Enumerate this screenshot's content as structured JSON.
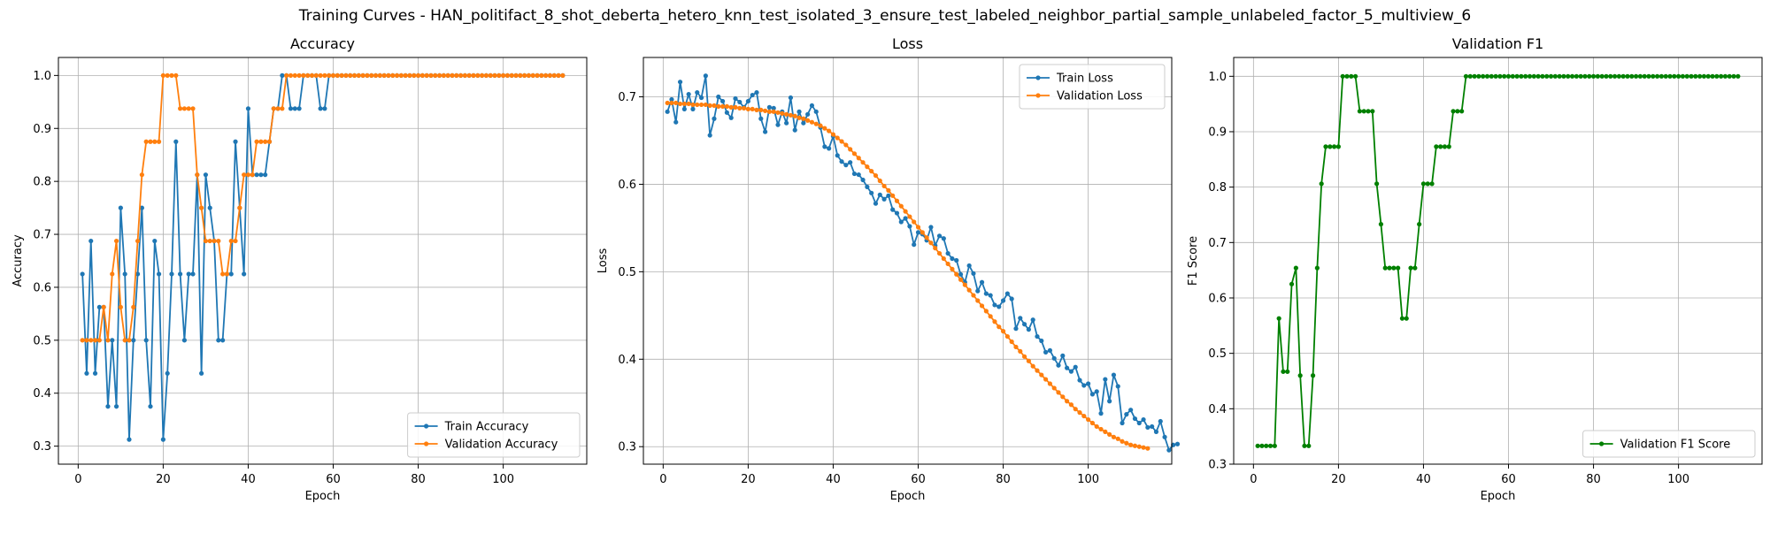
{
  "figure": {
    "suptitle": "Training Curves - HAN_politifact_8_shot_deberta_hetero_knn_test_isolated_3_ensure_test_labeled_neighbor_partial_sample_unlabeled_factor_5_multiview_6"
  },
  "colors": {
    "train": "#1f77b4",
    "validation": "#ff7f0e",
    "f1": "#008000",
    "grid": "#b0b0b0"
  },
  "chart_data": [
    {
      "type": "line",
      "title": "Accuracy",
      "xlabel": "Epoch",
      "ylabel": "Accuracy",
      "xlim": [
        -4.65,
        119.65
      ],
      "ylim": [
        0.266,
        1.034
      ],
      "xticks": [
        0,
        20,
        40,
        60,
        80,
        100
      ],
      "yticks": [
        0.3,
        0.4,
        0.5,
        0.6,
        0.7,
        0.8,
        0.9,
        1.0
      ],
      "grid": true,
      "legend": "lower right",
      "series": [
        {
          "name": "Train Accuracy",
          "color": "#1f77b4",
          "x_start": 1,
          "values": [
            0.625,
            0.4375,
            0.6875,
            0.4375,
            0.5625,
            0.5625,
            0.375,
            0.5,
            0.375,
            0.75,
            0.625,
            0.3125,
            0.5,
            0.625,
            0.75,
            0.5,
            0.375,
            0.6875,
            0.625,
            0.3125,
            0.4375,
            0.625,
            0.875,
            0.625,
            0.5,
            0.625,
            0.625,
            0.8125,
            0.4375,
            0.8125,
            0.75,
            0.6875,
            0.5,
            0.5,
            0.625,
            0.625,
            0.875,
            0.75,
            0.625,
            0.9375,
            0.8125,
            0.8125,
            0.8125,
            0.8125,
            0.875,
            0.9375,
            0.9375,
            1.0,
            1.0,
            0.9375,
            0.9375,
            0.9375,
            1.0,
            1.0,
            1.0,
            1.0,
            0.9375,
            0.9375,
            1.0,
            1.0,
            1.0,
            1.0,
            1.0,
            1.0,
            1.0,
            1.0,
            1.0,
            1.0,
            1.0,
            1.0,
            1.0,
            1.0,
            1.0,
            1.0,
            1.0,
            1.0,
            1.0,
            1.0,
            1.0,
            1.0,
            1.0,
            1.0,
            1.0,
            1.0,
            1.0,
            1.0,
            1.0,
            1.0,
            1.0,
            1.0,
            1.0,
            1.0,
            1.0,
            1.0,
            1.0,
            1.0,
            1.0,
            1.0,
            1.0,
            1.0,
            1.0,
            1.0,
            1.0,
            1.0,
            1.0,
            1.0,
            1.0,
            1.0,
            1.0,
            1.0,
            1.0,
            1.0,
            1.0,
            1.0
          ]
        },
        {
          "name": "Validation Accuracy",
          "color": "#ff7f0e",
          "x_start": 1,
          "values": [
            0.5,
            0.5,
            0.5,
            0.5,
            0.5,
            0.5625,
            0.5,
            0.625,
            0.6875,
            0.5625,
            0.5,
            0.5,
            0.5625,
            0.6875,
            0.8125,
            0.875,
            0.875,
            0.875,
            0.875,
            1.0,
            1.0,
            1.0,
            1.0,
            0.9375,
            0.9375,
            0.9375,
            0.9375,
            0.8125,
            0.75,
            0.6875,
            0.6875,
            0.6875,
            0.6875,
            0.625,
            0.625,
            0.6875,
            0.6875,
            0.75,
            0.8125,
            0.8125,
            0.8125,
            0.875,
            0.875,
            0.875,
            0.875,
            0.9375,
            0.9375,
            0.9375,
            1.0,
            1.0,
            1.0,
            1.0,
            1.0,
            1.0,
            1.0,
            1.0,
            1.0,
            1.0,
            1.0,
            1.0,
            1.0,
            1.0,
            1.0,
            1.0,
            1.0,
            1.0,
            1.0,
            1.0,
            1.0,
            1.0,
            1.0,
            1.0,
            1.0,
            1.0,
            1.0,
            1.0,
            1.0,
            1.0,
            1.0,
            1.0,
            1.0,
            1.0,
            1.0,
            1.0,
            1.0,
            1.0,
            1.0,
            1.0,
            1.0,
            1.0,
            1.0,
            1.0,
            1.0,
            1.0,
            1.0,
            1.0,
            1.0,
            1.0,
            1.0,
            1.0,
            1.0,
            1.0,
            1.0,
            1.0,
            1.0,
            1.0,
            1.0,
            1.0,
            1.0,
            1.0,
            1.0,
            1.0,
            1.0,
            1.0
          ]
        }
      ]
    },
    {
      "type": "line",
      "title": "Loss",
      "xlabel": "Epoch",
      "ylabel": "Loss",
      "xlim": [
        -4.65,
        119.65
      ],
      "ylim": [
        0.28,
        0.745
      ],
      "xticks": [
        0,
        20,
        40,
        60,
        80,
        100
      ],
      "yticks": [
        0.3,
        0.4,
        0.5,
        0.6,
        0.7
      ],
      "grid": true,
      "legend": "upper right",
      "series": [
        {
          "name": "Train Loss",
          "color": "#1f77b4",
          "x_start": 1,
          "values": [
            0.683,
            0.697,
            0.671,
            0.717,
            0.686,
            0.703,
            0.686,
            0.705,
            0.699,
            0.724,
            0.656,
            0.675,
            0.7,
            0.695,
            0.682,
            0.676,
            0.698,
            0.694,
            0.688,
            0.695,
            0.702,
            0.705,
            0.675,
            0.66,
            0.688,
            0.687,
            0.668,
            0.683,
            0.67,
            0.699,
            0.662,
            0.683,
            0.67,
            0.68,
            0.69,
            0.683,
            0.665,
            0.643,
            0.641,
            0.655,
            0.633,
            0.626,
            0.622,
            0.625,
            0.612,
            0.611,
            0.605,
            0.597,
            0.59,
            0.578,
            0.588,
            0.583,
            0.587,
            0.571,
            0.567,
            0.557,
            0.561,
            0.552,
            0.531,
            0.545,
            0.543,
            0.536,
            0.551,
            0.53,
            0.541,
            0.538,
            0.521,
            0.515,
            0.513,
            0.497,
            0.488,
            0.507,
            0.498,
            0.478,
            0.488,
            0.475,
            0.473,
            0.462,
            0.46,
            0.467,
            0.475,
            0.469,
            0.435,
            0.447,
            0.44,
            0.434,
            0.445,
            0.426,
            0.421,
            0.408,
            0.41,
            0.401,
            0.393,
            0.404,
            0.39,
            0.386,
            0.391,
            0.376,
            0.37,
            0.372,
            0.36,
            0.363,
            0.338,
            0.377,
            0.352,
            0.382,
            0.369,
            0.327,
            0.337,
            0.342,
            0.332,
            0.327,
            0.331,
            0.322,
            0.323,
            0.317,
            0.329,
            0.311,
            0.296,
            0.302,
            0.303
          ]
        },
        {
          "name": "Validation Loss",
          "color": "#ff7f0e",
          "x_start": 1,
          "values": [
            0.693,
            0.693,
            0.693,
            0.692,
            0.692,
            0.692,
            0.691,
            0.691,
            0.691,
            0.691,
            0.69,
            0.69,
            0.689,
            0.689,
            0.689,
            0.688,
            0.688,
            0.687,
            0.687,
            0.686,
            0.686,
            0.685,
            0.685,
            0.684,
            0.683,
            0.683,
            0.682,
            0.681,
            0.68,
            0.679,
            0.678,
            0.676,
            0.675,
            0.673,
            0.671,
            0.669,
            0.667,
            0.664,
            0.661,
            0.657,
            0.653,
            0.649,
            0.645,
            0.64,
            0.635,
            0.63,
            0.625,
            0.62,
            0.615,
            0.61,
            0.604,
            0.598,
            0.593,
            0.587,
            0.581,
            0.575,
            0.569,
            0.563,
            0.557,
            0.551,
            0.545,
            0.539,
            0.533,
            0.527,
            0.521,
            0.515,
            0.509,
            0.503,
            0.497,
            0.491,
            0.485,
            0.479,
            0.473,
            0.467,
            0.461,
            0.455,
            0.449,
            0.443,
            0.437,
            0.432,
            0.426,
            0.42,
            0.414,
            0.409,
            0.403,
            0.398,
            0.392,
            0.387,
            0.382,
            0.377,
            0.372,
            0.367,
            0.362,
            0.357,
            0.352,
            0.348,
            0.343,
            0.339,
            0.335,
            0.331,
            0.327,
            0.323,
            0.32,
            0.317,
            0.314,
            0.311,
            0.309,
            0.306,
            0.304,
            0.302,
            0.301,
            0.3,
            0.299,
            0.298
          ]
        }
      ]
    },
    {
      "type": "line",
      "title": "Validation F1",
      "xlabel": "Epoch",
      "ylabel": "F1 Score",
      "xlim": [
        -4.65,
        119.65
      ],
      "ylim": [
        0.3,
        1.034
      ],
      "xticks": [
        0,
        20,
        40,
        60,
        80,
        100
      ],
      "yticks": [
        0.3,
        0.4,
        0.5,
        0.6,
        0.7,
        0.8,
        0.9,
        1.0
      ],
      "grid": true,
      "legend": "lower right",
      "series": [
        {
          "name": "Validation F1 Score",
          "color": "#008000",
          "x_start": 1,
          "values": [
            0.333,
            0.333,
            0.333,
            0.333,
            0.333,
            0.563,
            0.467,
            0.467,
            0.625,
            0.654,
            0.46,
            0.333,
            0.333,
            0.46,
            0.654,
            0.806,
            0.873,
            0.873,
            0.873,
            0.873,
            1.0,
            1.0,
            1.0,
            1.0,
            0.937,
            0.937,
            0.937,
            0.937,
            0.806,
            0.733,
            0.654,
            0.654,
            0.654,
            0.654,
            0.563,
            0.563,
            0.654,
            0.654,
            0.733,
            0.806,
            0.806,
            0.806,
            0.873,
            0.873,
            0.873,
            0.873,
            0.937,
            0.937,
            0.937,
            1.0,
            1.0,
            1.0,
            1.0,
            1.0,
            1.0,
            1.0,
            1.0,
            1.0,
            1.0,
            1.0,
            1.0,
            1.0,
            1.0,
            1.0,
            1.0,
            1.0,
            1.0,
            1.0,
            1.0,
            1.0,
            1.0,
            1.0,
            1.0,
            1.0,
            1.0,
            1.0,
            1.0,
            1.0,
            1.0,
            1.0,
            1.0,
            1.0,
            1.0,
            1.0,
            1.0,
            1.0,
            1.0,
            1.0,
            1.0,
            1.0,
            1.0,
            1.0,
            1.0,
            1.0,
            1.0,
            1.0,
            1.0,
            1.0,
            1.0,
            1.0,
            1.0,
            1.0,
            1.0,
            1.0,
            1.0,
            1.0,
            1.0,
            1.0,
            1.0,
            1.0,
            1.0,
            1.0,
            1.0,
            1.0
          ]
        }
      ]
    }
  ]
}
